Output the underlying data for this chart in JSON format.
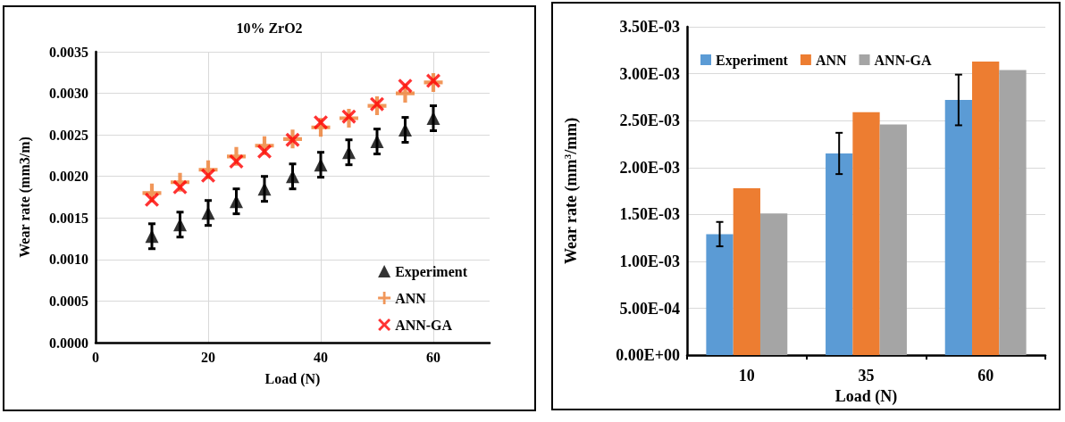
{
  "chart_data": [
    {
      "type": "scatter",
      "title": "10% ZrO2",
      "xlabel": "Load (N)",
      "ylabel": "Wear rate (mm3/m)",
      "xlim": [
        0,
        70
      ],
      "xticks": [
        0,
        20,
        40,
        60
      ],
      "ylim": [
        0,
        0.0035
      ],
      "yticks": [
        {
          "value": 0,
          "label": "0.0000"
        },
        {
          "value": 0.0005,
          "label": "0.0005"
        },
        {
          "value": 0.001,
          "label": "0.0010"
        },
        {
          "value": 0.0015,
          "label": "0.0015"
        },
        {
          "value": 0.002,
          "label": "0.0020"
        },
        {
          "value": 0.0025,
          "label": "0.0025"
        },
        {
          "value": 0.003,
          "label": "0.0030"
        },
        {
          "value": 0.0035,
          "label": "0.0035"
        }
      ],
      "grid": true,
      "legend": "bottom right",
      "x": [
        10,
        15,
        20,
        25,
        30,
        35,
        40,
        45,
        50,
        55,
        60
      ],
      "series": [
        {
          "name": "Experiment",
          "color": "#000000",
          "marker": "triangle",
          "values": [
            0.00128,
            0.00142,
            0.00156,
            0.0017,
            0.00185,
            0.002,
            0.00214,
            0.00229,
            0.00242,
            0.00256,
            0.0027
          ],
          "errors": [
            0.00015,
            0.00015,
            0.00015,
            0.00015,
            0.00015,
            0.00015,
            0.00015,
            0.00015,
            0.00015,
            0.00015,
            0.00015
          ]
        },
        {
          "name": "ANN",
          "color": "#ed7d31",
          "marker": "plus",
          "values": [
            0.0018,
            0.00193,
            0.00208,
            0.00224,
            0.00237,
            0.00245,
            0.00259,
            0.0027,
            0.00285,
            0.003,
            0.00313
          ]
        },
        {
          "name": "ANN-GA",
          "color": "#ff0000",
          "marker": "cross",
          "values": [
            0.00172,
            0.00187,
            0.00201,
            0.00218,
            0.0023,
            0.00244,
            0.00265,
            0.00272,
            0.00287,
            0.00309,
            0.00315
          ]
        }
      ]
    },
    {
      "type": "bar",
      "xlabel": "Load (N)",
      "ylabel": "Wear rate (mm$^{3}$/mm)",
      "categories": [
        "10",
        "35",
        "60"
      ],
      "ylim": [
        0,
        0.0035
      ],
      "yticks": [
        {
          "value": 0,
          "label": "0.00E+00"
        },
        {
          "value": 0.0005,
          "label": "5.00E-04"
        },
        {
          "value": 0.001,
          "label": "1.00E-03"
        },
        {
          "value": 0.0015,
          "label": "1.50E-03"
        },
        {
          "value": 0.002,
          "label": "2.00E-03"
        },
        {
          "value": 0.0025,
          "label": "2.50E-03"
        },
        {
          "value": 0.003,
          "label": "3.00E-03"
        },
        {
          "value": 0.0035,
          "label": "3.50E-03"
        }
      ],
      "grid": "y",
      "legend": "top",
      "series": [
        {
          "name": "Experiment",
          "color": "#5b9bd5",
          "values": [
            0.00129,
            0.00215,
            0.00272
          ],
          "errors": [
            0.00013,
            0.00022,
            0.00027
          ]
        },
        {
          "name": "ANN",
          "color": "#ed7d31",
          "values": [
            0.00178,
            0.00259,
            0.00313
          ]
        },
        {
          "name": "ANN-GA",
          "color": "#a5a5a5",
          "values": [
            0.00151,
            0.00246,
            0.00304
          ]
        }
      ]
    }
  ]
}
